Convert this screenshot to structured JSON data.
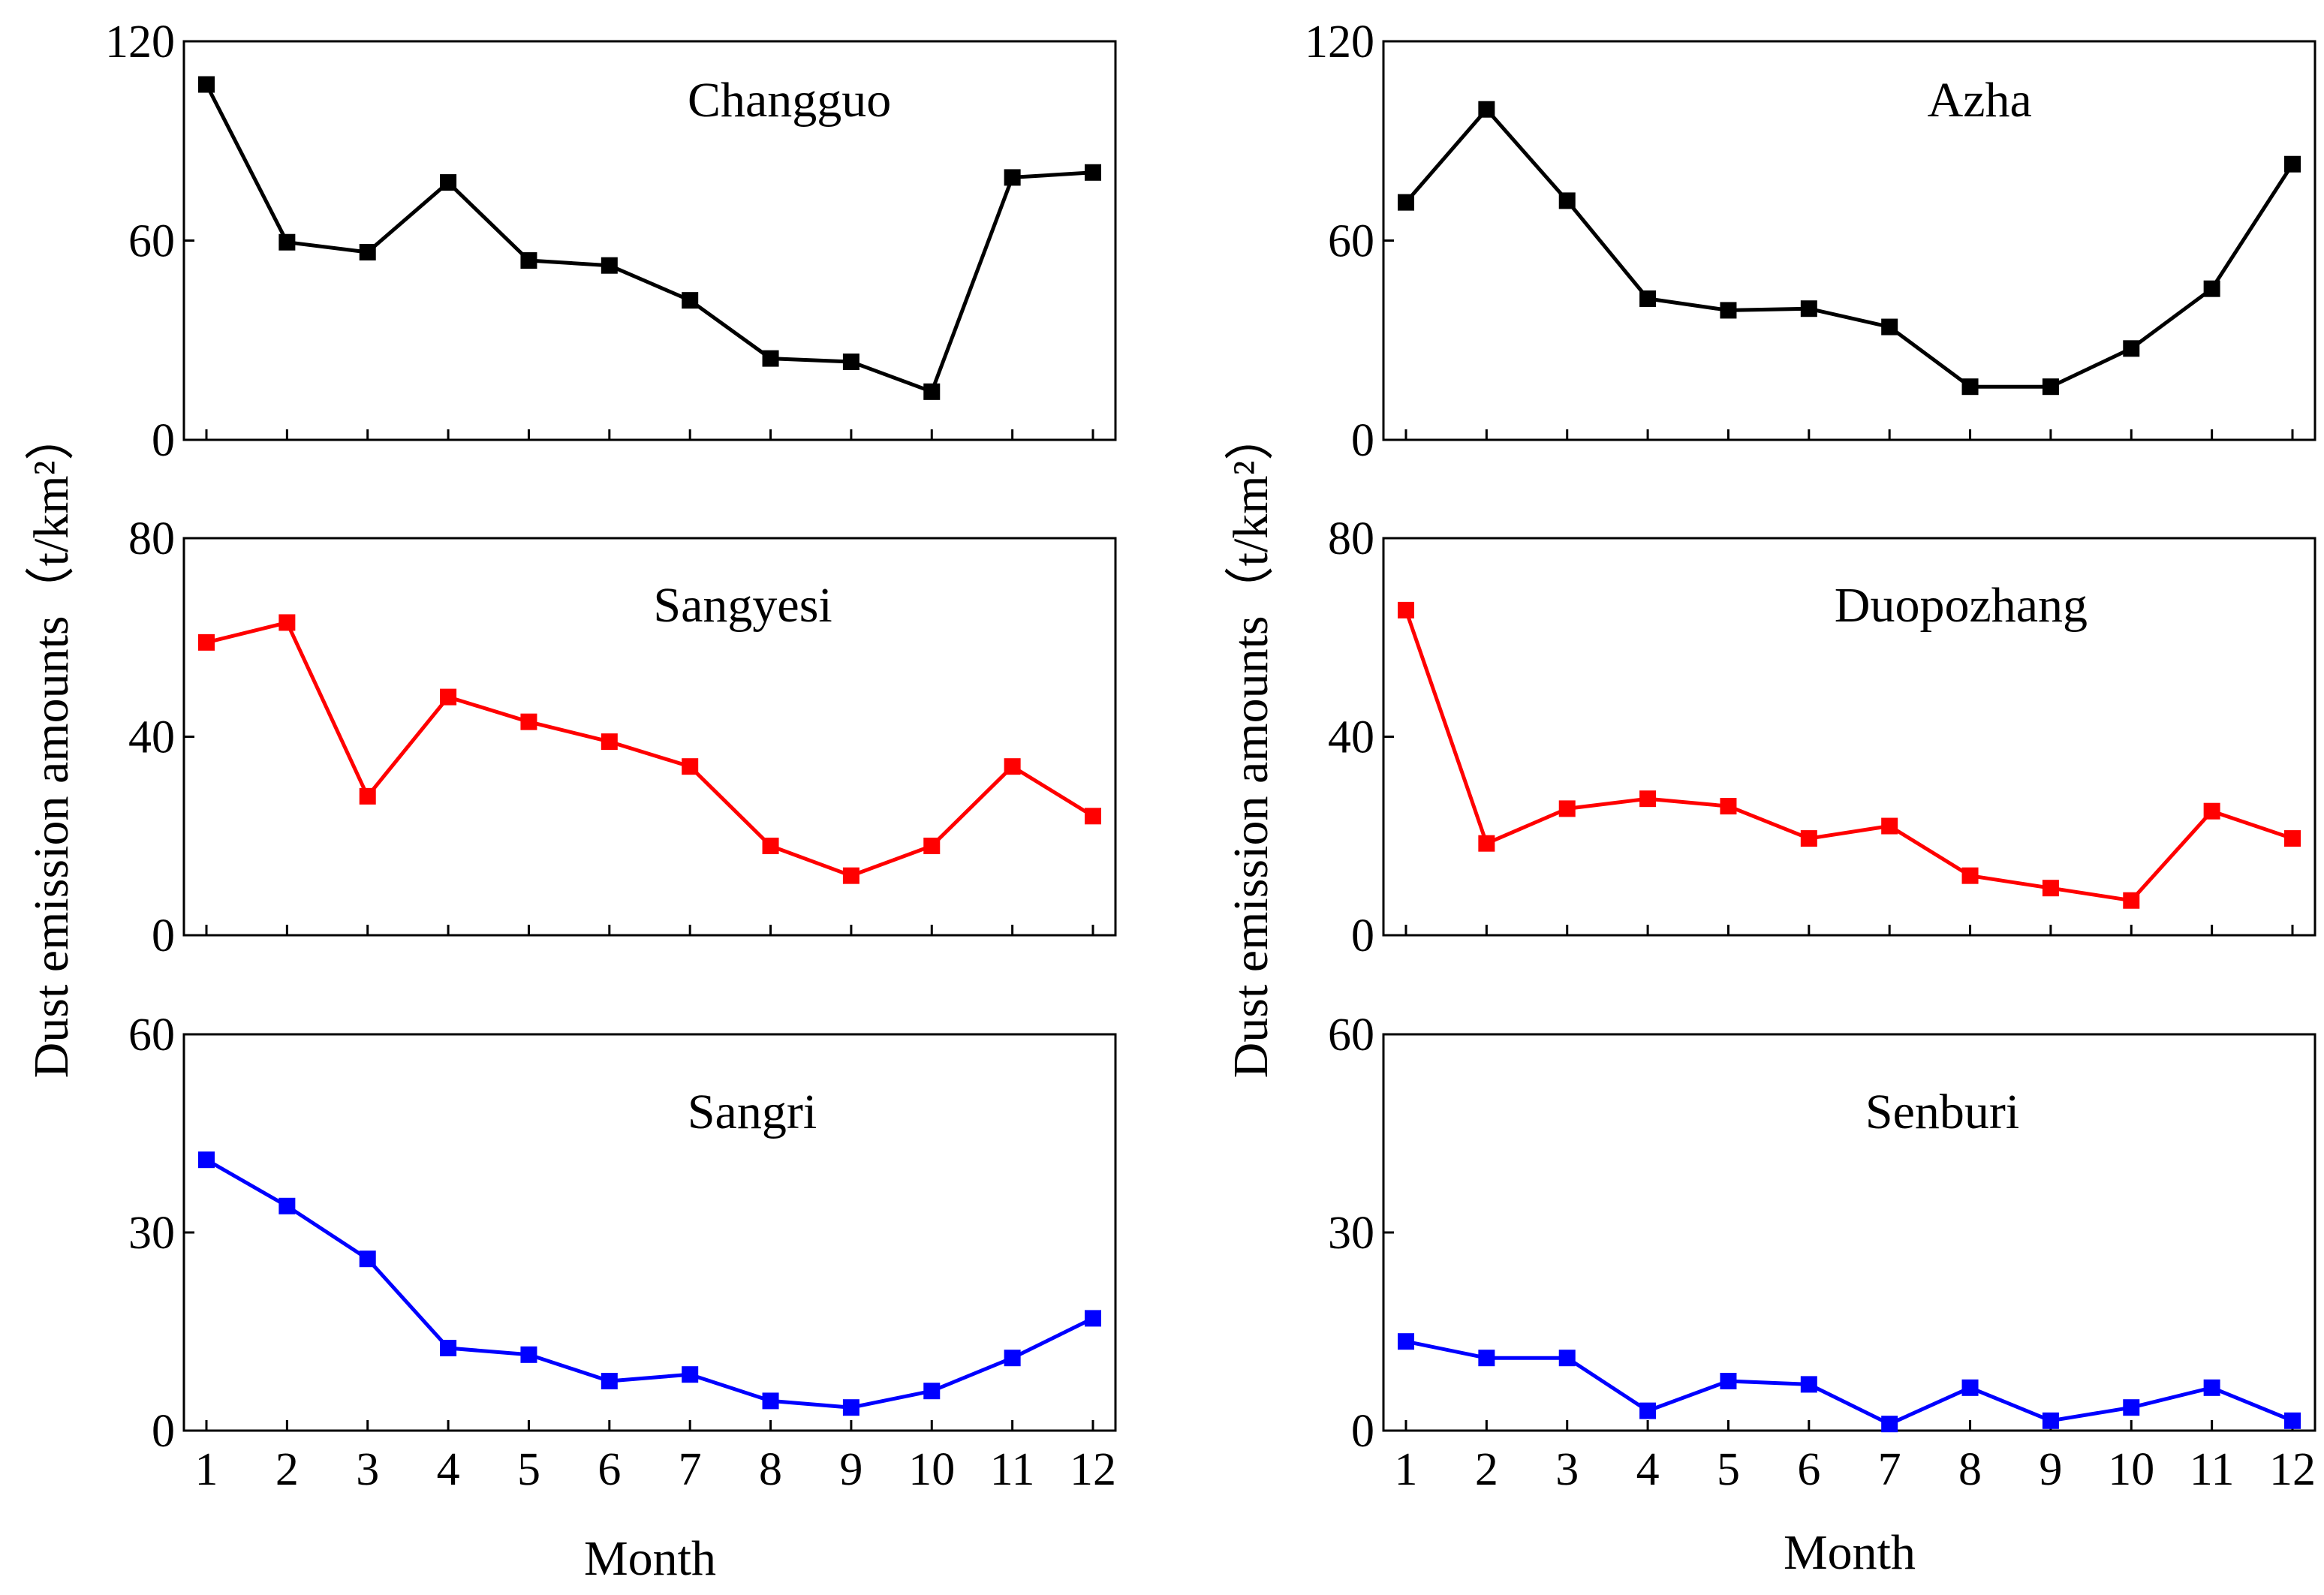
{
  "figure": {
    "ylabel": "Dust emission amounts（t/km²）",
    "xlabel": "Month"
  },
  "chart_data": [
    {
      "type": "line",
      "title": "Changguo",
      "categories": [
        "1",
        "2",
        "3",
        "4",
        "5",
        "6",
        "7",
        "8",
        "9",
        "10",
        "11",
        "12"
      ],
      "series": [
        {
          "values": [
            107,
            59.5,
            56.5,
            77.5,
            54,
            52.5,
            42,
            24.5,
            23.5,
            14.5,
            79,
            80.5
          ]
        }
      ],
      "ylim": [
        0,
        120
      ],
      "yticks": [
        "0",
        "60",
        "120"
      ],
      "xlabel": "",
      "ylabel": "Dust emission amounts（t/km²）",
      "color": "#000000",
      "grid": false
    },
    {
      "type": "line",
      "title": "Azha",
      "categories": [
        "1",
        "2",
        "3",
        "4",
        "5",
        "6",
        "7",
        "8",
        "9",
        "10",
        "11",
        "12"
      ],
      "series": [
        {
          "values": [
            71.5,
            99.5,
            72,
            42.5,
            39,
            39.5,
            34,
            16,
            16,
            27.5,
            45.5,
            83
          ]
        }
      ],
      "ylim": [
        0,
        120
      ],
      "yticks": [
        "0",
        "60",
        "120"
      ],
      "xlabel": "",
      "ylabel": "Dust emission amounts（t/km²）",
      "color": "#000000",
      "grid": false
    },
    {
      "type": "line",
      "title": "Sangyesi",
      "categories": [
        "1",
        "2",
        "3",
        "4",
        "5",
        "6",
        "7",
        "8",
        "9",
        "10",
        "11",
        "12"
      ],
      "series": [
        {
          "values": [
            59,
            63,
            28,
            48,
            43,
            39,
            34,
            18,
            12,
            18,
            34,
            24
          ]
        }
      ],
      "ylim": [
        0,
        80
      ],
      "yticks": [
        "0",
        "40",
        "80"
      ],
      "xlabel": "",
      "ylabel": "Dust emission amounts（t/km²）",
      "color": "#ff0000",
      "grid": false
    },
    {
      "type": "line",
      "title": "Duopozhang",
      "categories": [
        "1",
        "2",
        "3",
        "4",
        "5",
        "6",
        "7",
        "8",
        "9",
        "10",
        "11",
        "12"
      ],
      "series": [
        {
          "values": [
            65.5,
            18.5,
            25.5,
            27.5,
            26,
            19.5,
            22,
            12,
            9.5,
            7,
            25,
            19.5
          ]
        }
      ],
      "ylim": [
        0,
        80
      ],
      "yticks": [
        "0",
        "40",
        "80"
      ],
      "xlabel": "",
      "ylabel": "Dust emission amounts（t/km²）",
      "color": "#ff0000",
      "grid": false
    },
    {
      "type": "line",
      "title": "Sangri",
      "categories": [
        "1",
        "2",
        "3",
        "4",
        "5",
        "6",
        "7",
        "8",
        "9",
        "10",
        "11",
        "12"
      ],
      "series": [
        {
          "values": [
            41,
            34,
            26,
            12.5,
            11.5,
            7.5,
            8.5,
            4.5,
            3.5,
            6,
            11,
            17
          ]
        }
      ],
      "ylim": [
        0,
        60
      ],
      "yticks": [
        "0",
        "30",
        "60"
      ],
      "xlabel": "Month",
      "ylabel": "Dust emission amounts（t/km²）",
      "color": "#0000ff",
      "grid": false
    },
    {
      "type": "line",
      "title": "Senburi",
      "categories": [
        "1",
        "2",
        "3",
        "4",
        "5",
        "6",
        "7",
        "8",
        "9",
        "10",
        "11",
        "12"
      ],
      "series": [
        {
          "values": [
            13.5,
            11,
            11,
            3,
            7.5,
            7,
            1,
            6.5,
            1.5,
            3.5,
            6.5,
            1.5
          ]
        }
      ],
      "ylim": [
        0,
        60
      ],
      "yticks": [
        "0",
        "30",
        "60"
      ],
      "xlabel": "Month",
      "ylabel": "Dust emission amounts（t/km²）",
      "color": "#0000ff",
      "grid": false
    }
  ]
}
